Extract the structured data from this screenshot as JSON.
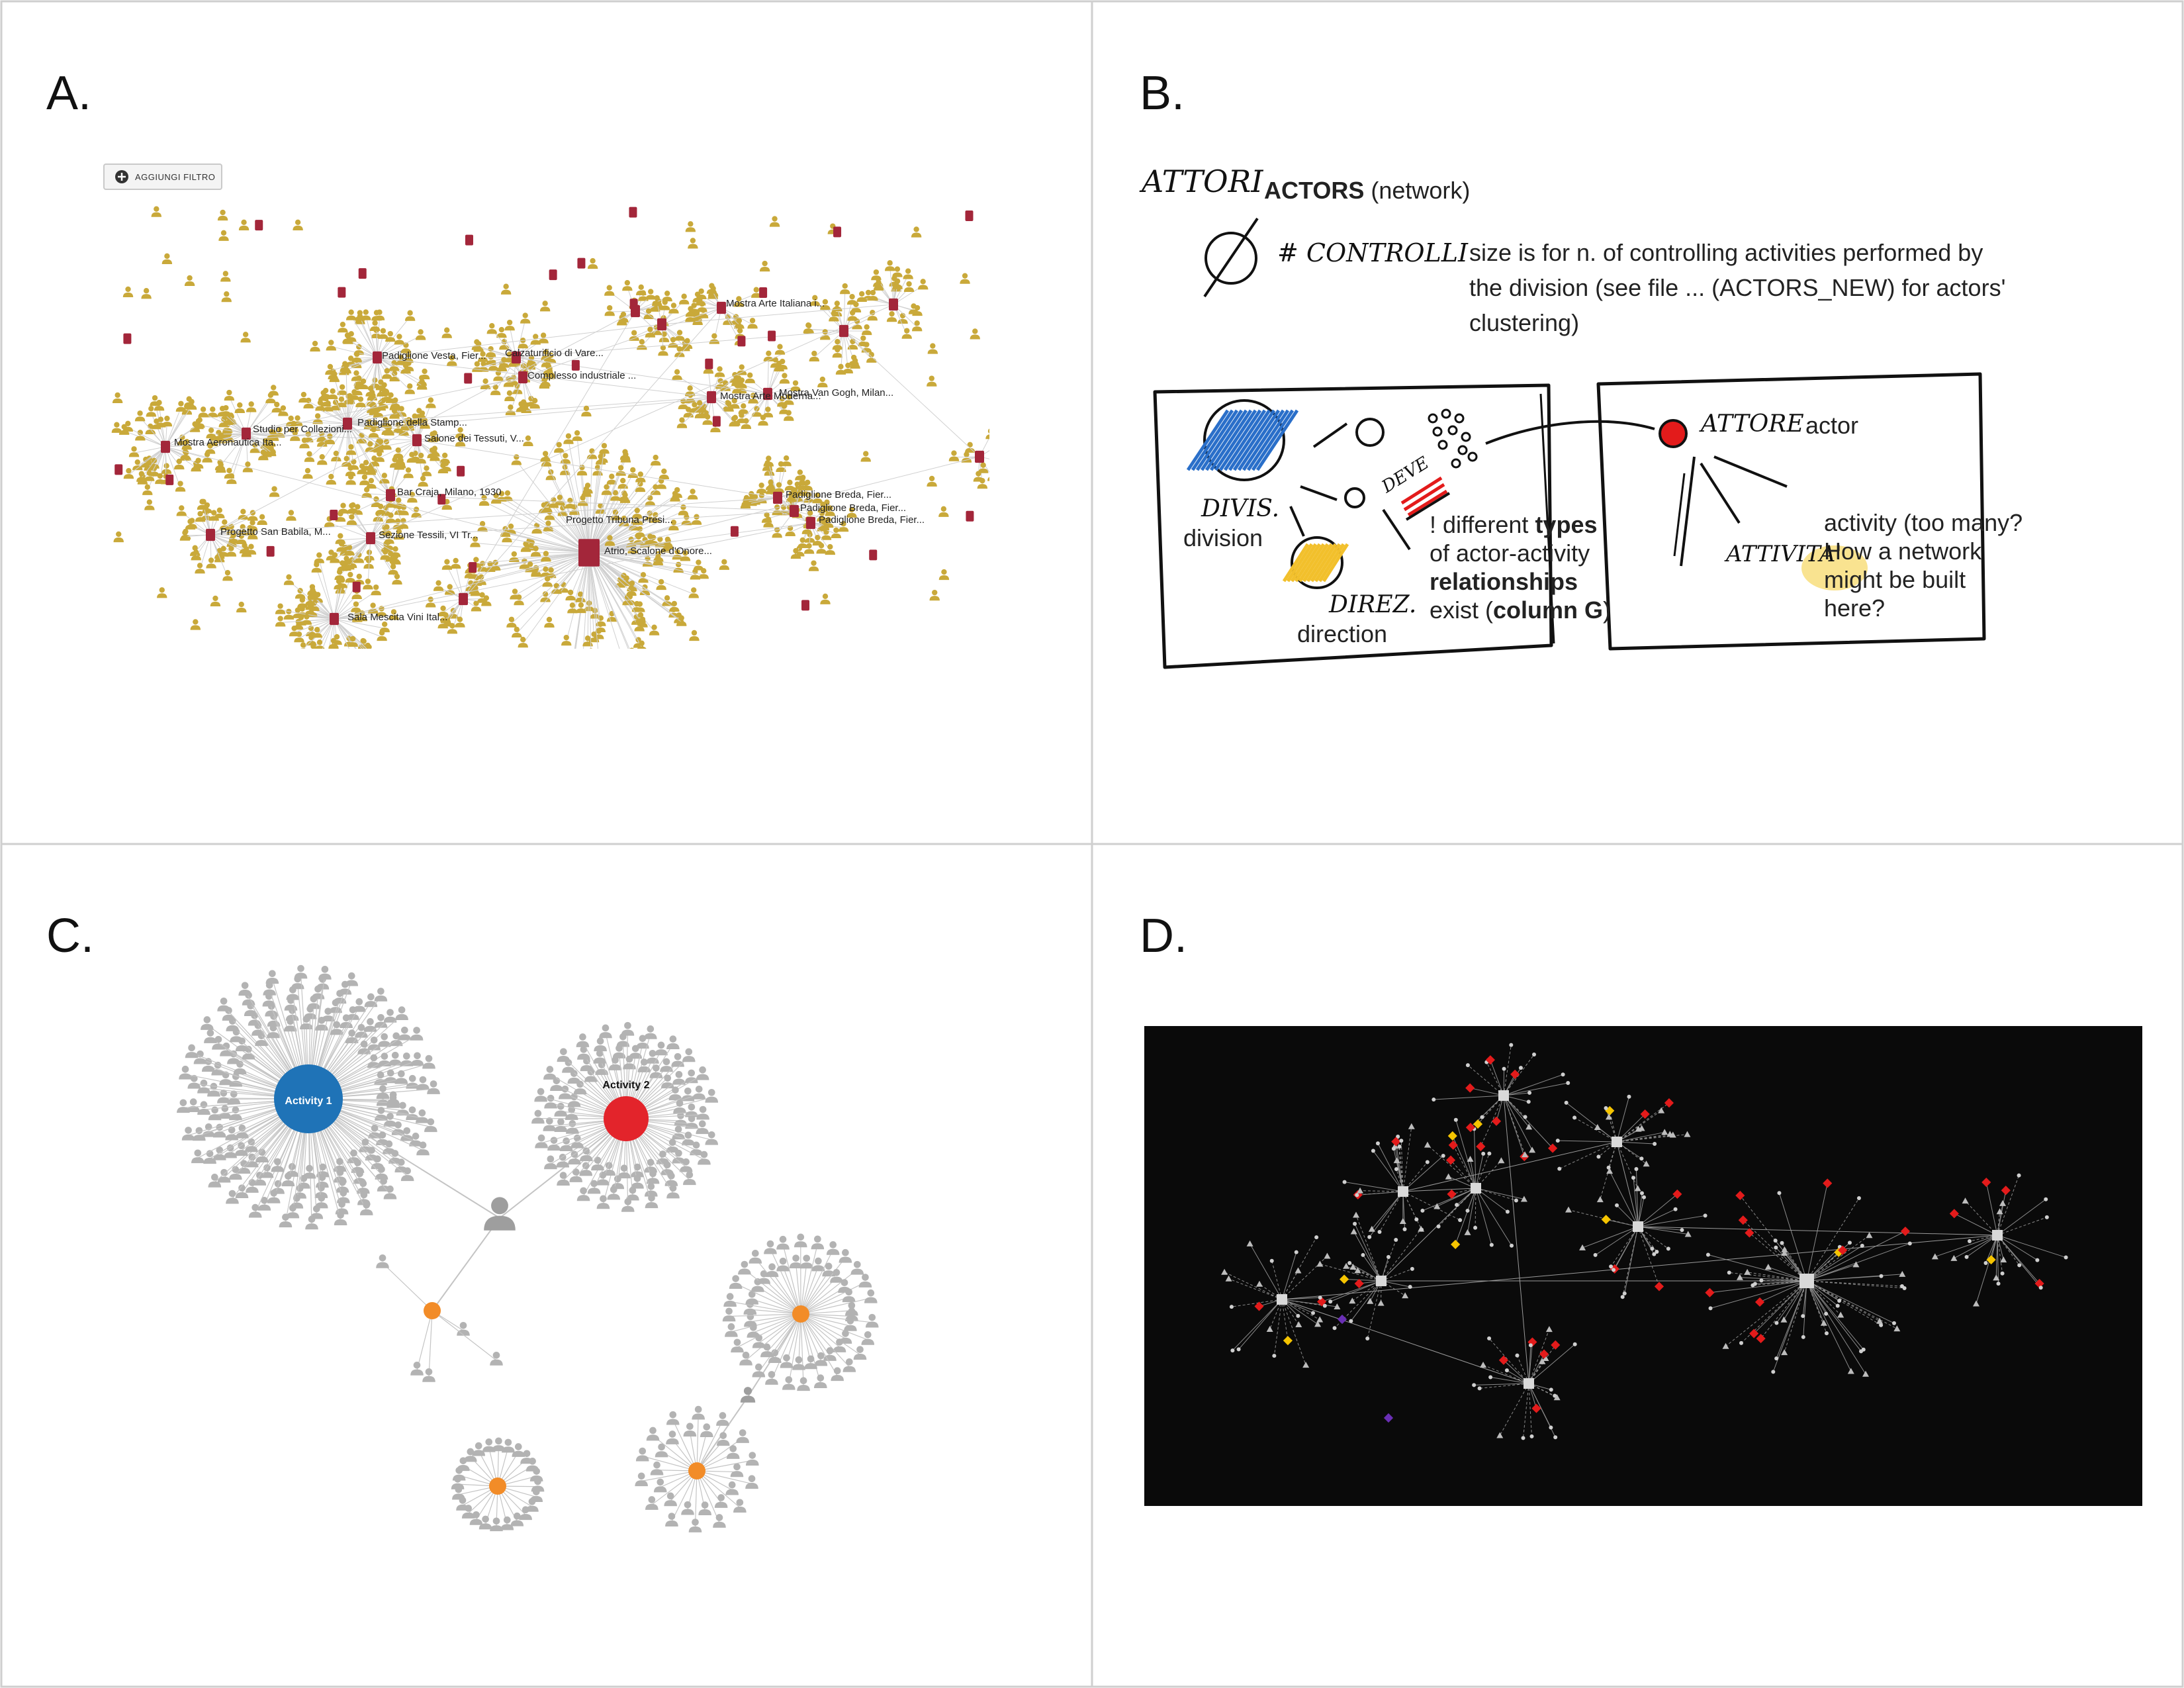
{
  "panels": {
    "a": {
      "letter": "A.",
      "filter_button": "AGGIUNGI FILTRO",
      "activity_labels": [
        "Mostra Arte Italiana i...",
        "Padiglione Vesta, Fier...",
        "Calzaturificio di Vare...",
        "Complesso industriale ...",
        "Mostra Arte Moderna...",
        "Mostra Van Gogh, Milan...",
        "Studio per Collezioni...",
        "Padiglione della Stamp...",
        "Mostra Aeronautica Ita...",
        "Salone dei Tessuti, V...",
        "Bar Craja, Milano, 1930",
        "Progetto Tribuna Presi...",
        "Padiglione Breda, Fier...",
        "Padiglione Breda, Fier...",
        "Padiglione Breda, Fier...",
        "Progetto San Babila, M...",
        "Sezione Tessili, VI Tr...",
        "Atrio, Scalone d'Onore...",
        "Sala Mescita Vini Ital..."
      ]
    },
    "b": {
      "letter": "B.",
      "hand_attori": "ATTORI",
      "title_bold": "ACTORS",
      "title_rest": " (network)",
      "hand_controlli": "# CONTROLLI",
      "size_line1": "size is for n. of controlling activities performed by",
      "size_line2": "the division (see file ... (ACTORS_NEW) for actors'",
      "size_line3": "clustering)",
      "hand_divis": "DIVIS.",
      "division": "division",
      "hand_direz": "DIREZ.",
      "direction": "direction",
      "hand_deve": "DEVE",
      "types_l1a": "! different ",
      "types_l1b": "types",
      "types_l2": "of actor-activity",
      "types_l3": "relationships",
      "types_l4a": "exist (",
      "types_l4b": "column G",
      "types_l4c": ")",
      "hand_attore": "ATTORE",
      "actor": "actor",
      "hand_attivita": "ATTIVITA'",
      "activity_l1": "activity (too many?",
      "activity_l2": "How a network",
      "activity_l3": "might be built",
      "activity_l4": "here?"
    },
    "c": {
      "letter": "C.",
      "activity1": "Activity 1",
      "activity2": "Activity 2",
      "colors": {
        "blue": "#1f73b7",
        "red": "#e3242b",
        "orange": "#f28c28",
        "grey": "#b3b3b3"
      }
    },
    "d": {
      "letter": "D.",
      "colors": {
        "background": "#0a0a0a",
        "node": "#d9d9d9",
        "red": "#e31b1b",
        "yellow": "#f5c400",
        "purple": "#6a2fb5"
      }
    }
  }
}
